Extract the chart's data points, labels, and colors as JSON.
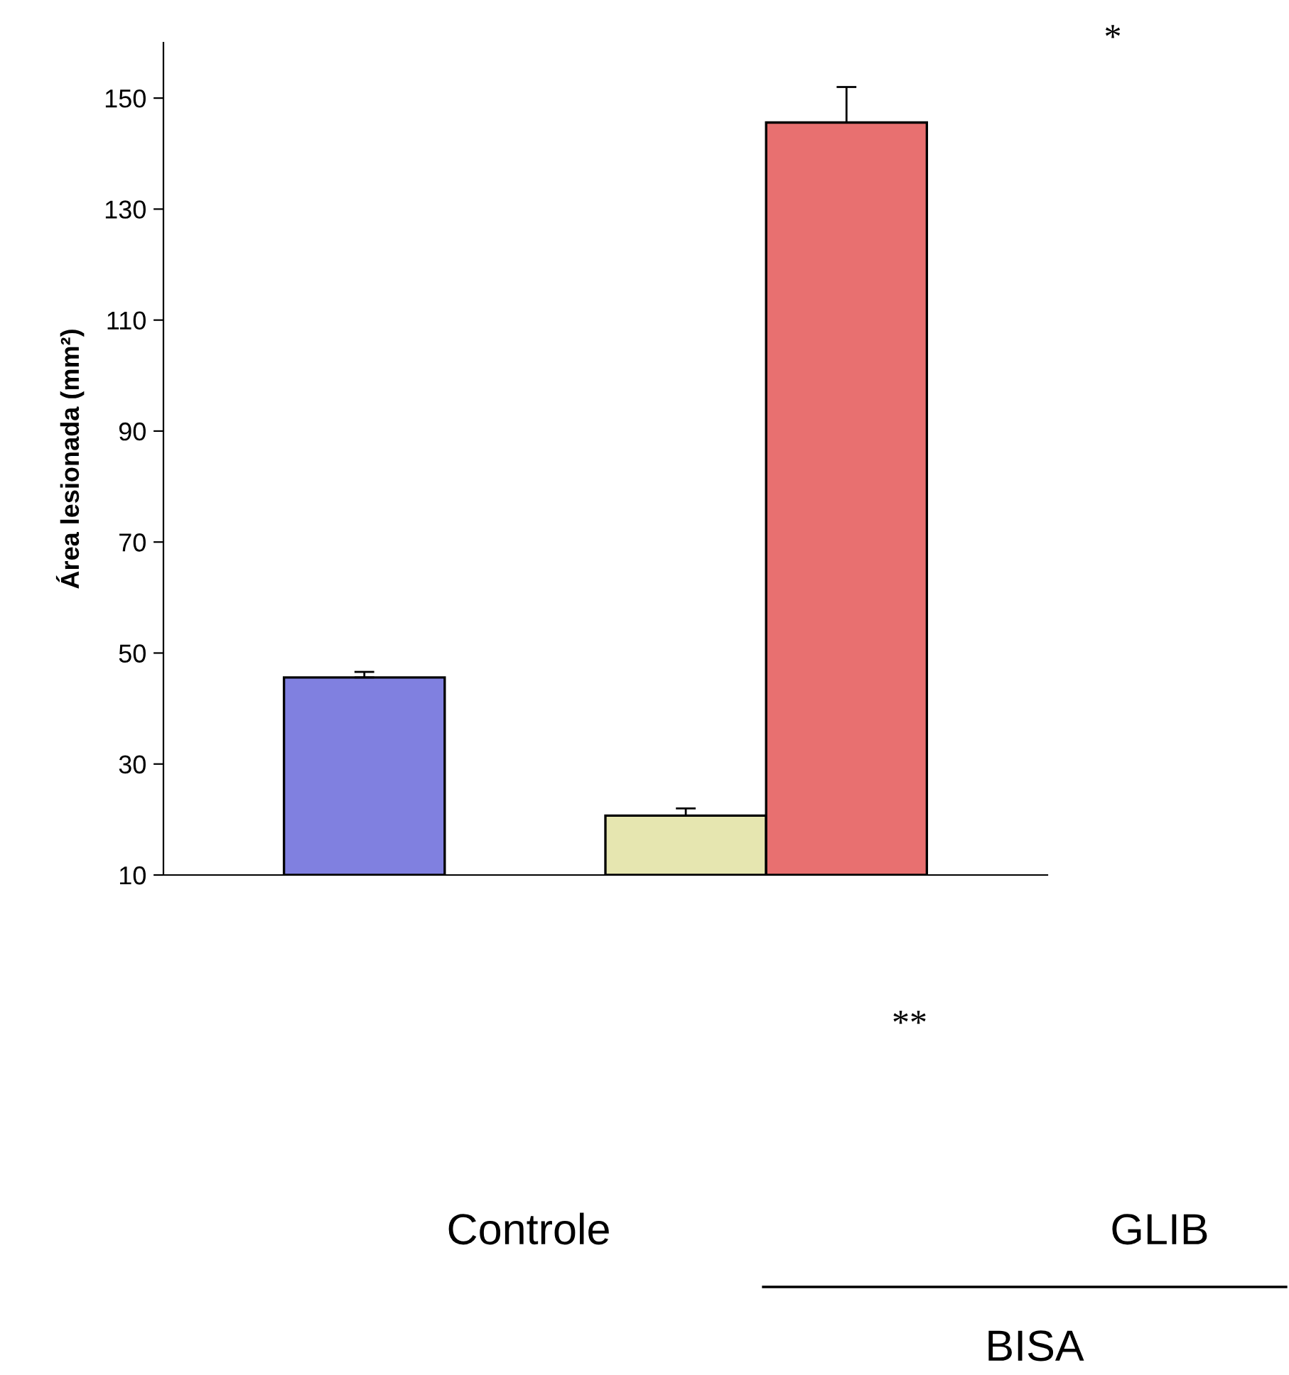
{
  "chart_data": {
    "type": "bar",
    "ylabel": "Área lesionada (mm²)",
    "categories": [
      null,
      null,
      null,
      null
    ],
    "values": [
      45.6,
      null,
      20.7,
      145.6
    ],
    "colors": [
      "#8080e0",
      "#ffffff",
      "#e6e6b0",
      "#e87070"
    ],
    "errors": [
      [
        45.6,
        46.6
      ],
      null,
      [
        20.7,
        22.0
      ],
      [
        145.6,
        152.0
      ]
    ],
    "ylim": [
      10,
      160
    ],
    "yticks": [
      10,
      30,
      50,
      70,
      90,
      110,
      130,
      150
    ],
    "grid": false,
    "legend": false,
    "annotations": [
      "*",
      "**",
      "Controle",
      "GLIB",
      "BISA"
    ]
  }
}
